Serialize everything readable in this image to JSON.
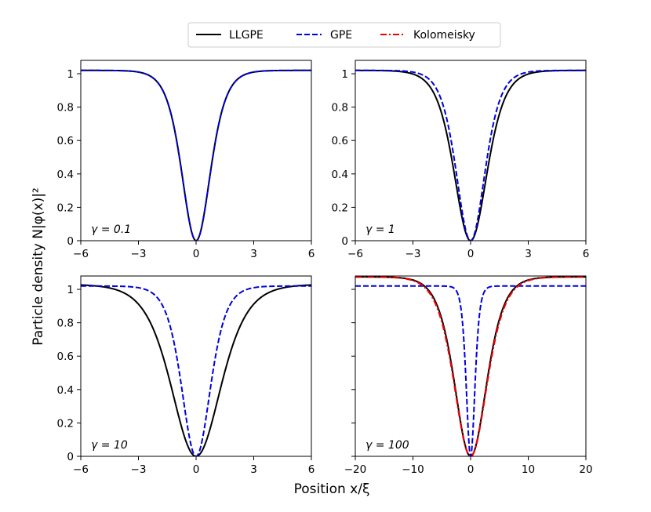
{
  "figure": {
    "xlabel": "Position x/ξ",
    "ylabel": "Particle density N|φ(x)|²"
  },
  "legend": {
    "placement": "top-center",
    "entries": [
      {
        "label": "LLGPE",
        "color": "#000000",
        "style": "solid"
      },
      {
        "label": "GPE",
        "color": "#0000dd",
        "style": "dashed"
      },
      {
        "label": "Kolomeisky",
        "color": "#ee0000",
        "style": "dashdot"
      }
    ]
  },
  "chart_data": [
    {
      "type": "line",
      "annotation": "γ = 0.1",
      "xlim": [
        -6,
        6
      ],
      "ylim": [
        0,
        1.08
      ],
      "xticks": [
        -6,
        -3,
        0,
        3,
        6
      ],
      "xtick_labels": [
        "−6",
        "−3",
        "0",
        "3",
        "6"
      ],
      "yticks": [
        0,
        0.2,
        0.4,
        0.6,
        0.8,
        1
      ],
      "ytick_labels": [
        "0",
        "0.2",
        "0.4",
        "0.6",
        "0.8",
        "1"
      ],
      "series": [
        {
          "name": "LLGPE",
          "amplitude": 1.02,
          "width": 1.0
        },
        {
          "name": "GPE",
          "amplitude": 1.02,
          "width": 1.0
        }
      ]
    },
    {
      "type": "line",
      "annotation": "γ = 1",
      "xlim": [
        -6,
        6
      ],
      "ylim": [
        0,
        1.08
      ],
      "xticks": [
        -6,
        -3,
        0,
        3,
        6
      ],
      "xtick_labels": [
        "−6",
        "−3",
        "0",
        "3",
        "6"
      ],
      "yticks": [
        0,
        0.2,
        0.4,
        0.6,
        0.8,
        1
      ],
      "ytick_labels": [
        "0",
        "0.2",
        "0.4",
        "0.6",
        "0.8",
        "1"
      ],
      "series": [
        {
          "name": "LLGPE",
          "amplitude": 1.02,
          "width": 1.15
        },
        {
          "name": "GPE",
          "amplitude": 1.02,
          "width": 1.0
        }
      ]
    },
    {
      "type": "line",
      "annotation": "γ = 10",
      "xlim": [
        -6,
        6
      ],
      "ylim": [
        0,
        1.08
      ],
      "xticks": [
        -6,
        -3,
        0,
        3,
        6
      ],
      "xtick_labels": [
        "−6",
        "−3",
        "0",
        "3",
        "6"
      ],
      "yticks": [
        0,
        0.2,
        0.4,
        0.6,
        0.8,
        1
      ],
      "ytick_labels": [
        "0",
        "0.2",
        "0.4",
        "0.6",
        "0.8",
        "1"
      ],
      "series": [
        {
          "name": "LLGPE",
          "amplitude": 1.03,
          "width": 1.72
        },
        {
          "name": "GPE",
          "amplitude": 1.02,
          "width": 1.0
        }
      ]
    },
    {
      "type": "line",
      "annotation": "γ = 100",
      "xlim": [
        -20,
        20
      ],
      "ylim": [
        0,
        1.08
      ],
      "xticks": [
        -20,
        -10,
        0,
        10,
        20
      ],
      "xtick_labels": [
        "−20",
        "−10",
        "0",
        "10",
        "20"
      ],
      "yticks": [
        0,
        0.2,
        0.4,
        0.6,
        0.8,
        1
      ],
      "ytick_labels": [
        "",
        "",
        "",
        "",
        "",
        ""
      ],
      "series": [
        {
          "name": "LLGPE",
          "amplitude": 1.075,
          "width": 3.7
        },
        {
          "name": "GPE",
          "amplitude": 1.02,
          "width": 1.0
        },
        {
          "name": "Kolomeisky",
          "amplitude": 1.075,
          "width": 3.8
        }
      ]
    }
  ]
}
